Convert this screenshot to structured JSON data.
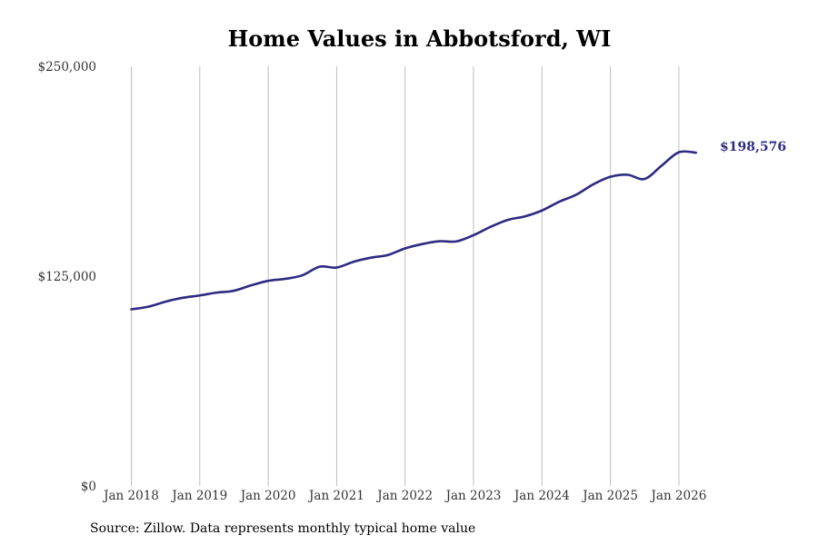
{
  "chart_data": {
    "type": "line",
    "title": "Home Values in Abbotsford, WI",
    "xlabel": "",
    "ylabel": "",
    "ylim": [
      0,
      250000
    ],
    "xlim": [
      "2017-12",
      "2026-07"
    ],
    "y_ticks": [
      {
        "value": 0,
        "label": "$0"
      },
      {
        "value": 125000,
        "label": "$125,000"
      },
      {
        "value": 250000,
        "label": "$250,000"
      }
    ],
    "x_ticks": [
      {
        "date": "2018-01",
        "label": "Jan 2018"
      },
      {
        "date": "2019-01",
        "label": "Jan 2019"
      },
      {
        "date": "2020-01",
        "label": "Jan 2020"
      },
      {
        "date": "2021-01",
        "label": "Jan 2021"
      },
      {
        "date": "2022-01",
        "label": "Jan 2022"
      },
      {
        "date": "2023-01",
        "label": "Jan 2023"
      },
      {
        "date": "2024-01",
        "label": "Jan 2024"
      },
      {
        "date": "2025-01",
        "label": "Jan 2025"
      },
      {
        "date": "2026-01",
        "label": "Jan 2026"
      }
    ],
    "grid": "vertical",
    "series_color": "#2e2a82",
    "end_label": "$198,576",
    "series": [
      {
        "points": [
          [
            "2018-01",
            105200
          ],
          [
            "2018-04",
            106800
          ],
          [
            "2018-07",
            109800
          ],
          [
            "2018-10",
            112100
          ],
          [
            "2019-01",
            113500
          ],
          [
            "2019-04",
            115200
          ],
          [
            "2019-07",
            116300
          ],
          [
            "2019-10",
            119500
          ],
          [
            "2020-01",
            122200
          ],
          [
            "2020-04",
            123400
          ],
          [
            "2020-07",
            125500
          ],
          [
            "2020-10",
            130600
          ],
          [
            "2021-01",
            130100
          ],
          [
            "2021-04",
            133600
          ],
          [
            "2021-07",
            136000
          ],
          [
            "2021-10",
            137600
          ],
          [
            "2022-01",
            141500
          ],
          [
            "2022-04",
            144100
          ],
          [
            "2022-07",
            145800
          ],
          [
            "2022-10",
            145700
          ],
          [
            "2023-01",
            149400
          ],
          [
            "2023-04",
            154400
          ],
          [
            "2023-07",
            158500
          ],
          [
            "2023-10",
            160600
          ],
          [
            "2024-01",
            164100
          ],
          [
            "2024-04",
            169300
          ],
          [
            "2024-07",
            173500
          ],
          [
            "2024-10",
            179700
          ],
          [
            "2025-01",
            184200
          ],
          [
            "2025-04",
            185400
          ],
          [
            "2025-07",
            182900
          ],
          [
            "2025-10",
            190900
          ],
          [
            "2026-01",
            198800
          ],
          [
            "2026-04",
            198576
          ]
        ]
      }
    ]
  },
  "source_note": "Source: Zillow. Data represents monthly typical home value"
}
